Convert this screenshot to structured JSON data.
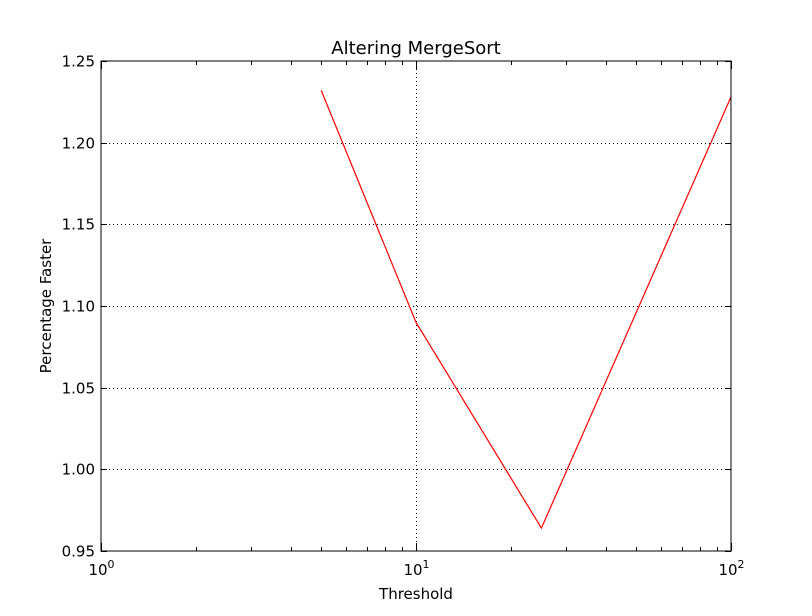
{
  "chart_data": {
    "type": "line",
    "title": "Altering MergeSort",
    "xlabel": "Threshold",
    "ylabel": "Percentage Faster",
    "xscale": "log",
    "xlim": [
      1,
      100
    ],
    "ylim": [
      0.95,
      1.25
    ],
    "grid": true,
    "x_ticks": [
      {
        "value": 1,
        "mantissa": "10",
        "exponent": "0"
      },
      {
        "value": 10,
        "mantissa": "10",
        "exponent": "1"
      },
      {
        "value": 100,
        "mantissa": "10",
        "exponent": "2"
      }
    ],
    "y_ticks": [
      {
        "value": 0.95,
        "label": "0.95"
      },
      {
        "value": 1.0,
        "label": "1.00"
      },
      {
        "value": 1.05,
        "label": "1.05"
      },
      {
        "value": 1.1,
        "label": "1.10"
      },
      {
        "value": 1.15,
        "label": "1.15"
      },
      {
        "value": 1.2,
        "label": "1.20"
      },
      {
        "value": 1.25,
        "label": "1.25"
      }
    ],
    "series": [
      {
        "color": "#ff0000",
        "x": [
          5,
          10,
          25,
          100
        ],
        "y": [
          1.232,
          1.09,
          0.964,
          1.228
        ]
      }
    ]
  }
}
